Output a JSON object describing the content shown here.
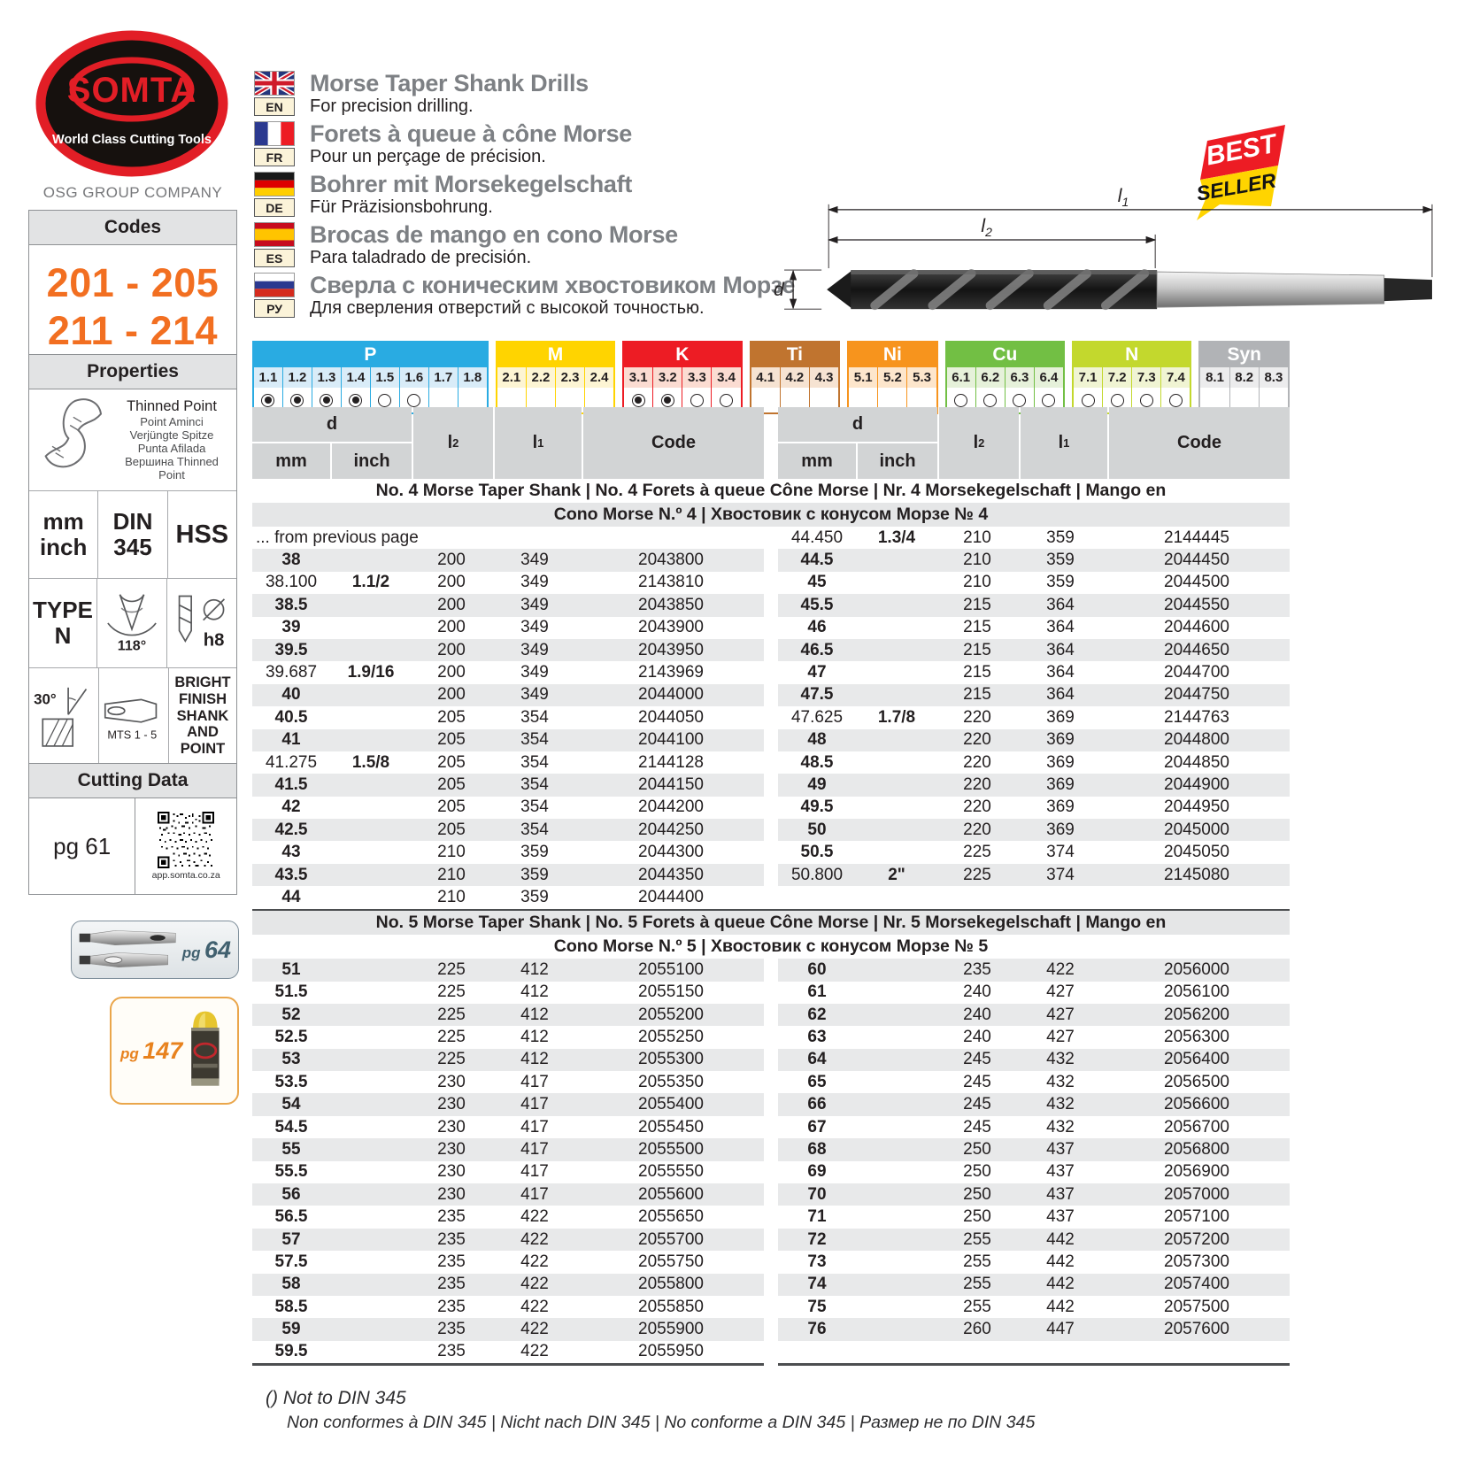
{
  "brand": {
    "logo_text": "SOMTA",
    "slogan": "World Class Cutting Tools",
    "company": "OSG GROUP COMPANY"
  },
  "codes": {
    "title": "Codes",
    "lines": [
      "201 - 205",
      "211 - 214"
    ]
  },
  "languages": [
    {
      "code": "EN",
      "flag": "uk",
      "title": "Morse Taper Shank Drills",
      "subtitle": "For precision drilling."
    },
    {
      "code": "FR",
      "flag": "fr",
      "title": "Forets à queue à cône Morse",
      "subtitle": "Pour un perçage de précision."
    },
    {
      "code": "DE",
      "flag": "de",
      "title": "Bohrer mit Morsekegelschaft",
      "subtitle": "Für Präzisionsbohrung."
    },
    {
      "code": "ES",
      "flag": "es",
      "title": "Brocas de mango en cono Morse",
      "subtitle": "Para taladrado de precisión."
    },
    {
      "code": "РУ",
      "flag": "ru",
      "title": "Сверла с коническим хвостовиком Морзе",
      "subtitle": "Для сверления отверстий с высокой точностью."
    }
  ],
  "badge": {
    "top": "BEST",
    "bottom": "SELLER"
  },
  "diagram": {
    "l1": {
      "base": "l",
      "sub": "1"
    },
    "l2": {
      "base": "l",
      "sub": "2"
    },
    "d": {
      "base": "d",
      "sub": ""
    }
  },
  "materials": [
    {
      "name": "P",
      "color": "#29abe2",
      "tint": "#d9ecf8",
      "cells": [
        {
          "label": "1.1",
          "radio": "filled"
        },
        {
          "label": "1.2",
          "radio": "filled"
        },
        {
          "label": "1.3",
          "radio": "filled"
        },
        {
          "label": "1.4",
          "radio": "filled"
        },
        {
          "label": "1.5",
          "radio": "empty"
        },
        {
          "label": "1.6",
          "radio": "empty"
        },
        {
          "label": "1.7",
          "radio": "none"
        },
        {
          "label": "1.8",
          "radio": "none"
        }
      ]
    },
    {
      "name": "M",
      "color": "#ffd400",
      "tint": "#fdf5d4",
      "cells": [
        {
          "label": "2.1",
          "radio": "none"
        },
        {
          "label": "2.2",
          "radio": "none"
        },
        {
          "label": "2.3",
          "radio": "none"
        },
        {
          "label": "2.4",
          "radio": "none"
        }
      ]
    },
    {
      "name": "K",
      "color": "#ed1c24",
      "tint": "#fbdcd2",
      "cells": [
        {
          "label": "3.1",
          "radio": "filled"
        },
        {
          "label": "3.2",
          "radio": "filled"
        },
        {
          "label": "3.3",
          "radio": "empty"
        },
        {
          "label": "3.4",
          "radio": "empty"
        }
      ]
    },
    {
      "name": "Ti",
      "color": "#c0742f",
      "tint": "#f6e3d2",
      "cells": [
        {
          "label": "4.1",
          "radio": "none"
        },
        {
          "label": "4.2",
          "radio": "none"
        },
        {
          "label": "4.3",
          "radio": "none"
        }
      ]
    },
    {
      "name": "Ni",
      "color": "#f7941d",
      "tint": "#fde6cc",
      "cells": [
        {
          "label": "5.1",
          "radio": "none"
        },
        {
          "label": "5.2",
          "radio": "none"
        },
        {
          "label": "5.3",
          "radio": "none"
        }
      ]
    },
    {
      "name": "Cu",
      "color": "#72bf44",
      "tint": "#e6f1da",
      "cells": [
        {
          "label": "6.1",
          "radio": "empty"
        },
        {
          "label": "6.2",
          "radio": "empty"
        },
        {
          "label": "6.3",
          "radio": "empty"
        },
        {
          "label": "6.4",
          "radio": "empty"
        }
      ]
    },
    {
      "name": "N",
      "color": "#c3d82d",
      "tint": "#f0f4d3",
      "cells": [
        {
          "label": "7.1",
          "radio": "empty"
        },
        {
          "label": "7.2",
          "radio": "empty"
        },
        {
          "label": "7.3",
          "radio": "empty"
        },
        {
          "label": "7.4",
          "radio": "empty"
        }
      ]
    },
    {
      "name": "Syn",
      "color": "#b1b3b6",
      "tint": "#ececed",
      "cells": [
        {
          "label": "8.1",
          "radio": "none"
        },
        {
          "label": "8.2",
          "radio": "none"
        },
        {
          "label": "8.3",
          "radio": "none"
        }
      ]
    }
  ],
  "properties": {
    "title": "Properties",
    "thinned_point": [
      "Thinned Point",
      "Point Aminci",
      "Verjüngte Spitze",
      "Punta Afilada",
      "Вершина Thinned Point"
    ],
    "units": [
      "mm",
      "inch"
    ],
    "din": [
      "DIN",
      "345"
    ],
    "hss": "HSS",
    "type": [
      "TYPE",
      "N"
    ],
    "angle": "118°",
    "tolerance": "h8",
    "helix": "30°",
    "mts": "MTS 1 - 5",
    "finish": [
      "BRIGHT",
      "FINISH",
      "SHANK",
      "AND",
      "POINT"
    ]
  },
  "cutting_data": {
    "title": "Cutting Data",
    "page_ref": "pg 61",
    "qr_caption": "app.somta.co.za"
  },
  "page_links": [
    {
      "prefix": "pg",
      "number": "64"
    },
    {
      "prefix": "pg",
      "number": "147"
    }
  ],
  "tables": {
    "headers": {
      "d": "d",
      "mm": "mm",
      "inch": "inch",
      "l2_base": "l",
      "l2_sub": "2",
      "l1_base": "l",
      "l1_sub": "1",
      "code": "Code"
    },
    "sections": [
      {
        "banner_line1": "No. 4 Morse Taper Shank | No. 4 Forets à queue Cône Morse | Nr. 4 Morsekegelschaft | Mango en",
        "banner_line2": "Cono Morse N.º 4 | Хвостовик с конусом Морзе № 4",
        "banner_shades": [
          "white",
          "gray"
        ],
        "left_note": "... from previous page",
        "left_start_shaded": true,
        "right_start_shaded": false,
        "left_rows": [
          [
            "38",
            "",
            "200",
            "349",
            "2043800"
          ],
          [
            "38.100",
            "1.1/2",
            "200",
            "349",
            "2143810"
          ],
          [
            "38.5",
            "",
            "200",
            "349",
            "2043850"
          ],
          [
            "39",
            "",
            "200",
            "349",
            "2043900"
          ],
          [
            "39.5",
            "",
            "200",
            "349",
            "2043950"
          ],
          [
            "39.687",
            "1.9/16",
            "200",
            "349",
            "2143969"
          ],
          [
            "40",
            "",
            "200",
            "349",
            "2044000"
          ],
          [
            "40.5",
            "",
            "205",
            "354",
            "2044050"
          ],
          [
            "41",
            "",
            "205",
            "354",
            "2044100"
          ],
          [
            "41.275",
            "1.5/8",
            "205",
            "354",
            "2144128"
          ],
          [
            "41.5",
            "",
            "205",
            "354",
            "2044150"
          ],
          [
            "42",
            "",
            "205",
            "354",
            "2044200"
          ],
          [
            "42.5",
            "",
            "205",
            "354",
            "2044250"
          ],
          [
            "43",
            "",
            "210",
            "359",
            "2044300"
          ],
          [
            "43.5",
            "",
            "210",
            "359",
            "2044350"
          ],
          [
            "44",
            "",
            "210",
            "359",
            "2044400"
          ]
        ],
        "right_rows": [
          [
            "44.450",
            "1.3/4",
            "210",
            "359",
            "2144445"
          ],
          [
            "44.5",
            "",
            "210",
            "359",
            "2044450"
          ],
          [
            "45",
            "",
            "210",
            "359",
            "2044500"
          ],
          [
            "45.5",
            "",
            "215",
            "364",
            "2044550"
          ],
          [
            "46",
            "",
            "215",
            "364",
            "2044600"
          ],
          [
            "46.5",
            "",
            "215",
            "364",
            "2044650"
          ],
          [
            "47",
            "",
            "215",
            "364",
            "2044700"
          ],
          [
            "47.5",
            "",
            "215",
            "364",
            "2044750"
          ],
          [
            "47.625",
            "1.7/8",
            "220",
            "369",
            "2144763"
          ],
          [
            "48",
            "",
            "220",
            "369",
            "2044800"
          ],
          [
            "48.5",
            "",
            "220",
            "369",
            "2044850"
          ],
          [
            "49",
            "",
            "220",
            "369",
            "2044900"
          ],
          [
            "49.5",
            "",
            "220",
            "369",
            "2044950"
          ],
          [
            "50",
            "",
            "220",
            "369",
            "2045000"
          ],
          [
            "50.5",
            "",
            "225",
            "374",
            "2045050"
          ],
          [
            "50.800",
            "2\"",
            "225",
            "374",
            "2145080"
          ]
        ]
      },
      {
        "banner_line1": "No. 5 Morse Taper Shank | No. 5 Forets à queue Cône Morse | Nr. 5 Morsekegelschaft | Mango en",
        "banner_line2": "Cono Morse N.º 5 | Хвостовик с конусом Морзе № 5",
        "banner_shades": [
          "gray",
          "white"
        ],
        "left_note": null,
        "left_start_shaded": true,
        "right_start_shaded": true,
        "left_rows": [
          [
            "51",
            "",
            "225",
            "412",
            "2055100"
          ],
          [
            "51.5",
            "",
            "225",
            "412",
            "2055150"
          ],
          [
            "52",
            "",
            "225",
            "412",
            "2055200"
          ],
          [
            "52.5",
            "",
            "225",
            "412",
            "2055250"
          ],
          [
            "53",
            "",
            "225",
            "412",
            "2055300"
          ],
          [
            "53.5",
            "",
            "230",
            "417",
            "2055350"
          ],
          [
            "54",
            "",
            "230",
            "417",
            "2055400"
          ],
          [
            "54.5",
            "",
            "230",
            "417",
            "2055450"
          ],
          [
            "55",
            "",
            "230",
            "417",
            "2055500"
          ],
          [
            "55.5",
            "",
            "230",
            "417",
            "2055550"
          ],
          [
            "56",
            "",
            "230",
            "417",
            "2055600"
          ],
          [
            "56.5",
            "",
            "235",
            "422",
            "2055650"
          ],
          [
            "57",
            "",
            "235",
            "422",
            "2055700"
          ],
          [
            "57.5",
            "",
            "235",
            "422",
            "2055750"
          ],
          [
            "58",
            "",
            "235",
            "422",
            "2055800"
          ],
          [
            "58.5",
            "",
            "235",
            "422",
            "2055850"
          ],
          [
            "59",
            "",
            "235",
            "422",
            "2055900"
          ],
          [
            "59.5",
            "",
            "235",
            "422",
            "2055950"
          ]
        ],
        "right_rows": [
          [
            "60",
            "",
            "235",
            "422",
            "2056000"
          ],
          [
            "61",
            "",
            "240",
            "427",
            "2056100"
          ],
          [
            "62",
            "",
            "240",
            "427",
            "2056200"
          ],
          [
            "63",
            "",
            "240",
            "427",
            "2056300"
          ],
          [
            "64",
            "",
            "245",
            "432",
            "2056400"
          ],
          [
            "65",
            "",
            "245",
            "432",
            "2056500"
          ],
          [
            "66",
            "",
            "245",
            "432",
            "2056600"
          ],
          [
            "67",
            "",
            "245",
            "432",
            "2056700"
          ],
          [
            "68",
            "",
            "250",
            "437",
            "2056800"
          ],
          [
            "69",
            "",
            "250",
            "437",
            "2056900"
          ],
          [
            "70",
            "",
            "250",
            "437",
            "2057000"
          ],
          [
            "71",
            "",
            "250",
            "437",
            "2057100"
          ],
          [
            "72",
            "",
            "255",
            "442",
            "2057200"
          ],
          [
            "73",
            "",
            "255",
            "442",
            "2057300"
          ],
          [
            "74",
            "",
            "255",
            "442",
            "2057400"
          ],
          [
            "75",
            "",
            "255",
            "442",
            "2057500"
          ],
          [
            "76",
            "",
            "260",
            "447",
            "2057600"
          ]
        ]
      }
    ]
  },
  "footnote": {
    "line1": "() Not to DIN 345",
    "line2": "Non conformes à DIN 345 | Nicht nach DIN 345 | No conforme a DIN 345 | Размер не по DIN 345"
  }
}
